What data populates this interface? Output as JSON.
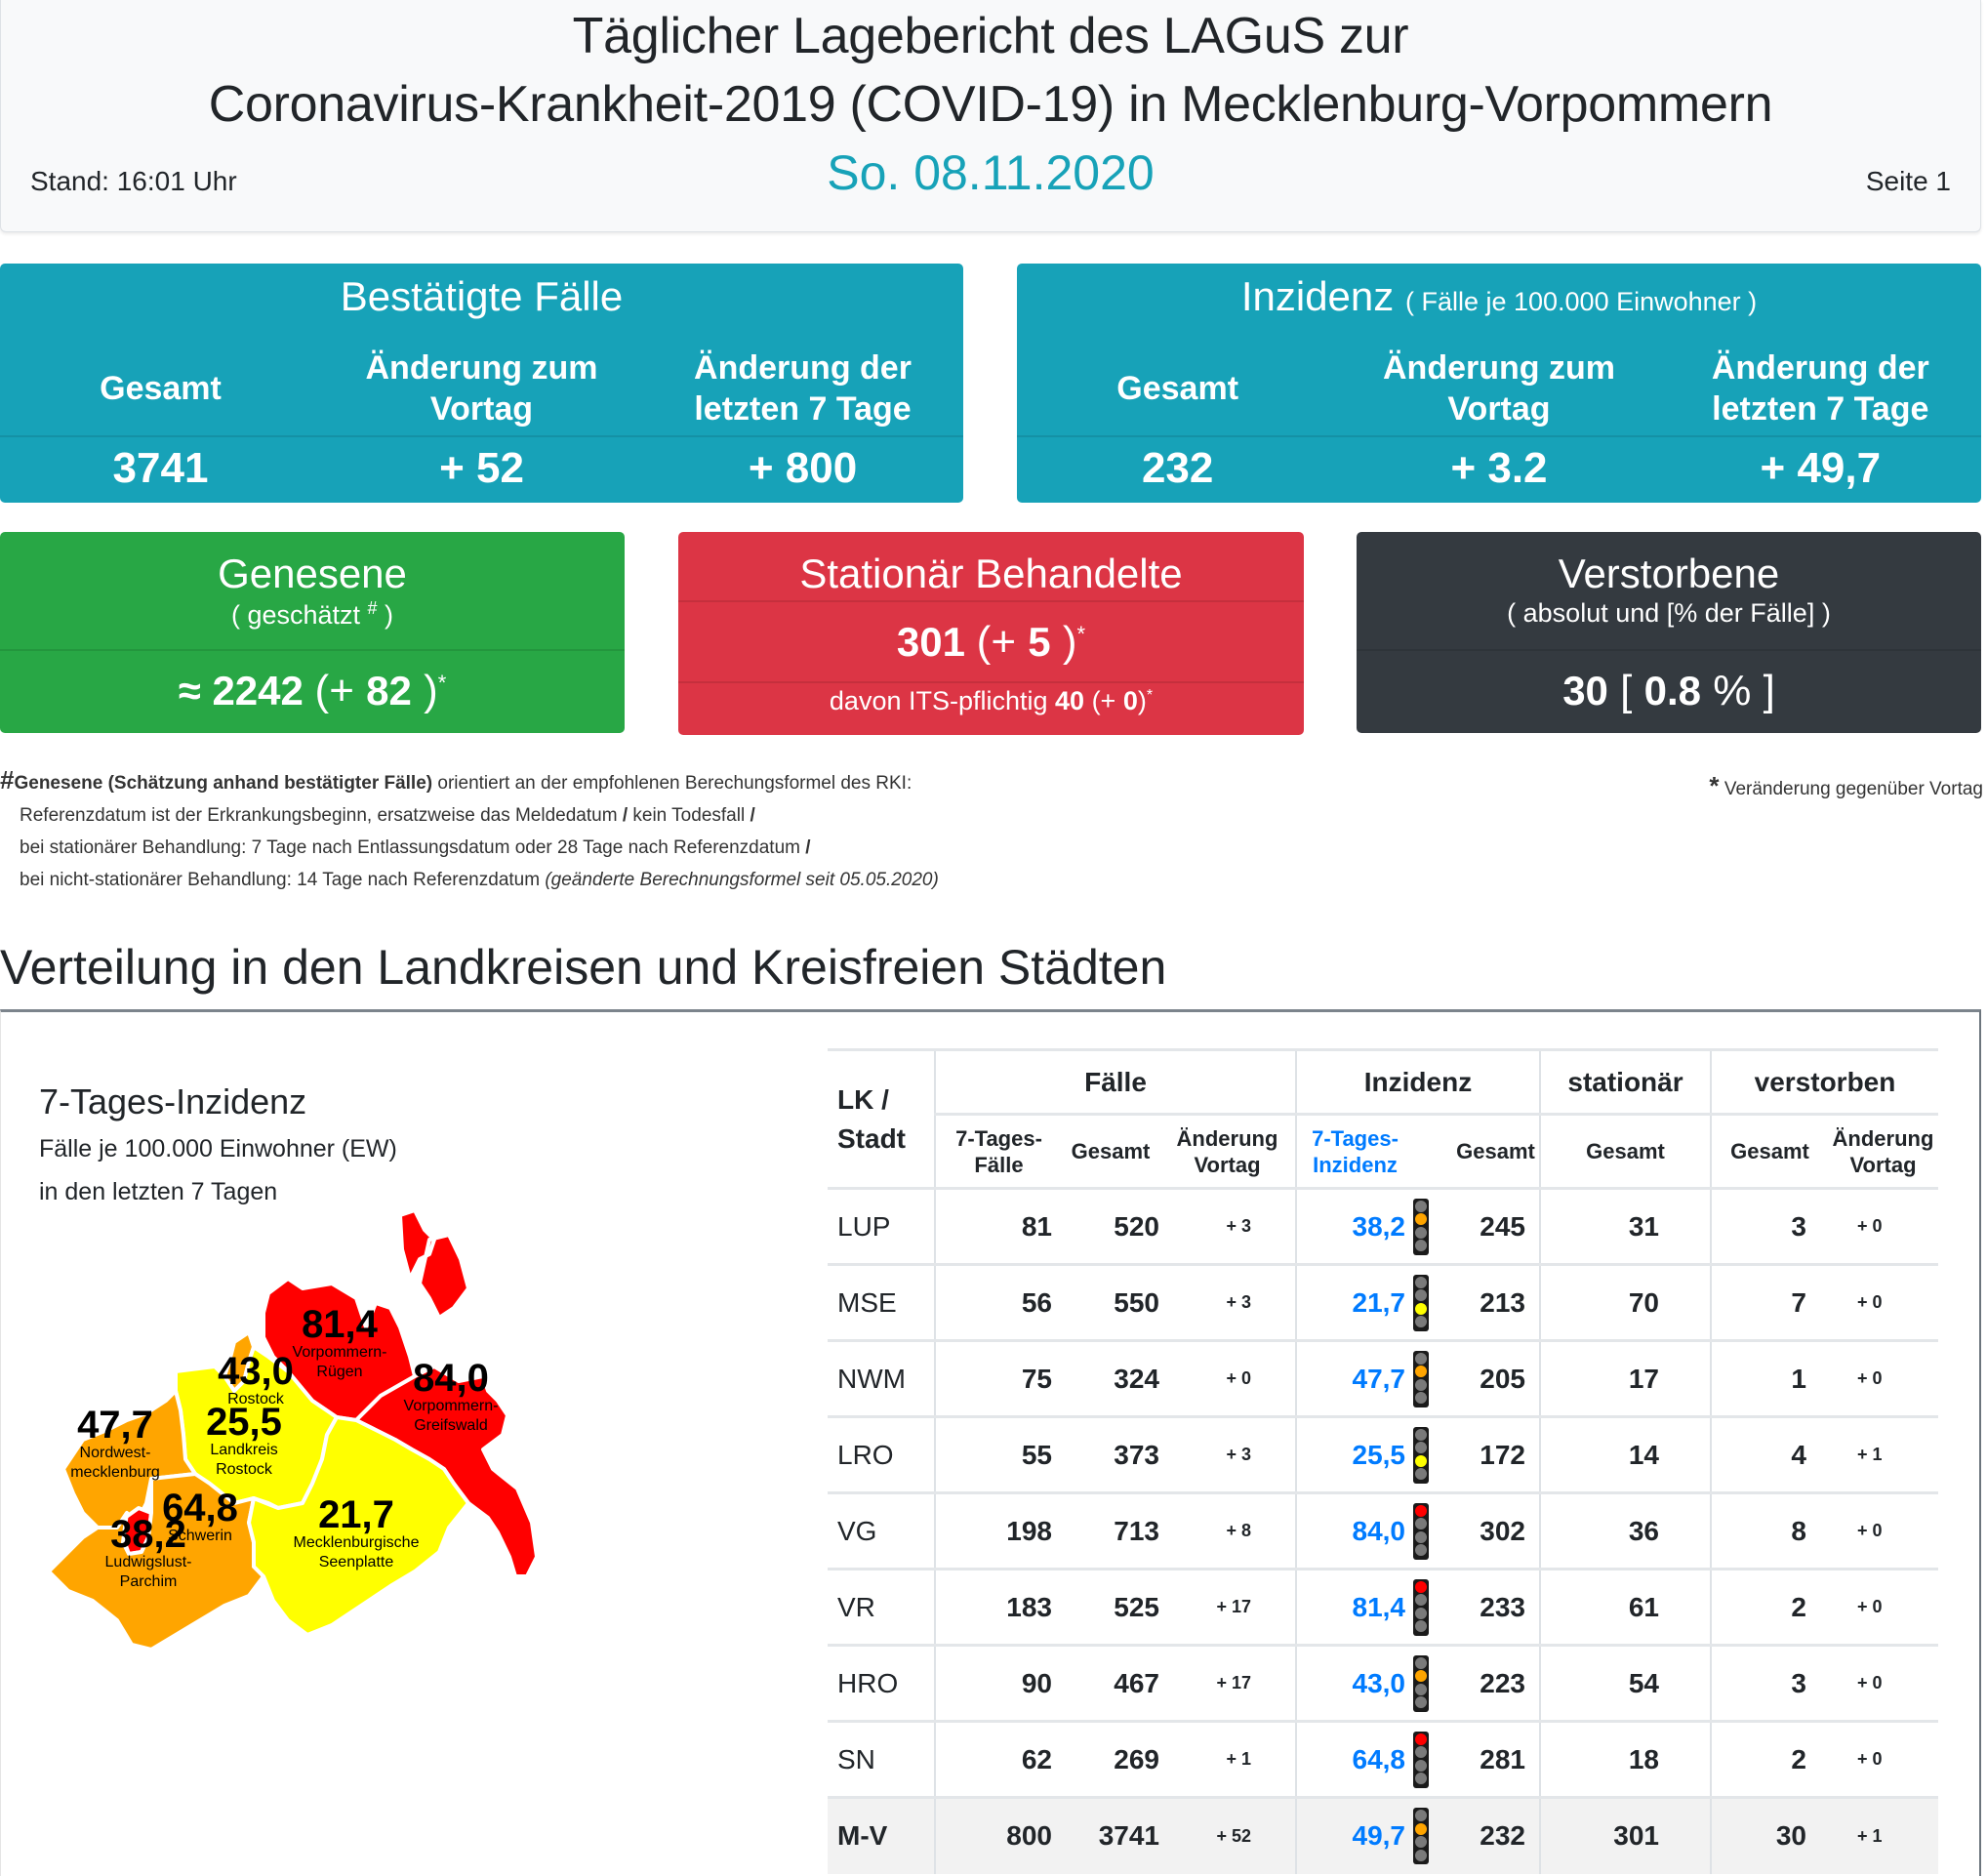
{
  "header": {
    "title_line1": "Täglicher Lagebericht des LAGuS zur",
    "title_line2": "Coronavirus-Krankheit-2019 (COVID-19) in Mecklenburg-Vorpommern",
    "stand": "Stand: 16:01 Uhr",
    "date": "So. 08.11.2020",
    "page": "Seite 1"
  },
  "cards": {
    "faelle": {
      "title": "Bestätigte Fälle",
      "columns": [
        "Gesamt",
        "Änderung zum Vortag",
        "Änderung der letzten 7 Tage"
      ],
      "values": [
        "3741",
        "+ 52",
        "+ 800"
      ]
    },
    "inzidenz": {
      "title": "Inzidenz",
      "subtitle": "( Fälle je 100.000 Einwohner )",
      "columns": [
        "Gesamt",
        "Änderung zum Vortag",
        "Änderung der letzten 7 Tage"
      ],
      "values": [
        "232",
        "+ 3.2",
        "+ 49,7"
      ]
    },
    "genesene": {
      "title": "Genesene",
      "subtitle_pre": "( geschätzt ",
      "subtitle_mark": "#",
      "subtitle_post": " )",
      "approx": "≈",
      "value": "2242",
      "paren_open": "(+ ",
      "change": "82",
      "paren_close": " )",
      "mark": "*"
    },
    "stationaer": {
      "title": "Stationär Behandelte",
      "value": "301",
      "paren_open": "(+ ",
      "change": "5",
      "paren_close": " )",
      "mark": "*",
      "its_label": "davon ITS-pflichtig ",
      "its_value": "40",
      "its_paren_open": " (+ ",
      "its_change": "0",
      "its_paren_close": ")",
      "its_mark": "*"
    },
    "verstorbene": {
      "title": "Verstorbene",
      "subtitle": "( absolut und [% der Fälle] )",
      "value": "30",
      "bracket_open": " [ ",
      "percent": "0.8",
      "bracket_close": " % ]"
    }
  },
  "footnotes": {
    "hash": "#",
    "bold": "Genesene (Schätzung anhand bestätigter Fälle)",
    "line1_rest": " orientiert an der empfohlenen Berechungsformel des RKI:",
    "line2a": "Referenzdatum ist der Erkrankungsbeginn, ersatzweise das Meldedatum ",
    "line2b": " kein Todesfall ",
    "slash": "/",
    "line3": "bei stationärer Behandlung: 7 Tage nach Entlassungsdatum oder 28 Tage nach Referenzdatum ",
    "line4": "bei nicht-stationärer Behandlung: 14 Tage nach Referenzdatum ",
    "line4_italic": "(geänderte Berechnungsformel seit 05.05.2020)",
    "asterisk": "*",
    "asterisk_text": " Veränderung gegenüber Vortag"
  },
  "section": {
    "title": "Verteilung in den Landkreisen und Kreisfreien Städten"
  },
  "map": {
    "title": "7-Tages-Inzidenz",
    "subtitle1": "Fälle je 100.000 Einwohner (EW)",
    "subtitle2": "in den letzten 7 Tagen",
    "colors": {
      "red": "#ff0000",
      "orange": "#ffa500",
      "yellow": "#ffff00"
    },
    "regions": [
      {
        "id": "vr",
        "value": "81,4",
        "name1": "Vorpommern-",
        "name2": "Rügen",
        "color": "#ff0000"
      },
      {
        "id": "vg",
        "value": "84,0",
        "name1": "Vorpommern-",
        "name2": "Greifswald",
        "color": "#ff0000"
      },
      {
        "id": "hro",
        "value": "43,0",
        "name1": "Rostock",
        "name2": "",
        "color": "#ffa500"
      },
      {
        "id": "lro",
        "value": "25,5",
        "name1": "Landkreis",
        "name2": "Rostock",
        "color": "#ffff00"
      },
      {
        "id": "nwm",
        "value": "47,7",
        "name1": "Nordwest-",
        "name2": "mecklenburg",
        "color": "#ffa500"
      },
      {
        "id": "sn",
        "value": "64,8",
        "name1": "Schwerin",
        "name2": "",
        "color": "#ff0000"
      },
      {
        "id": "lup",
        "value": "38,2",
        "name1": "Ludwigslust-",
        "name2": "Parchim",
        "color": "#ffa500"
      },
      {
        "id": "mse",
        "value": "21,7",
        "name1": "Mecklenburgische",
        "name2": "Seenplatte",
        "color": "#ffff00"
      }
    ]
  },
  "table": {
    "header_lk": "LK /",
    "header_stadt": "Stadt",
    "groups": [
      "Fälle",
      "Inzidenz",
      "stationär",
      "verstorben"
    ],
    "sub": {
      "f7_1": "7-Tages-",
      "f7_2": "Fälle",
      "fgesamt": "Gesamt",
      "fchg_1": "Änderung",
      "fchg_2": "Vortag",
      "i7_1": "7-Tages-",
      "i7_2": "Inzidenz",
      "igesamt": "Gesamt",
      "sgesamt": "Gesamt",
      "vgesamt": "Gesamt",
      "vchg_1": "Änderung",
      "vchg_2": "Vortag"
    },
    "rows": [
      {
        "name": "LUP",
        "f7": "81",
        "fges": "520",
        "fchg": "+ 3",
        "inz7": "38,2",
        "light": "orange",
        "iges": "245",
        "stat": "31",
        "vges": "3",
        "vchg": "+ 0"
      },
      {
        "name": "MSE",
        "f7": "56",
        "fges": "550",
        "fchg": "+ 3",
        "inz7": "21,7",
        "light": "yellow",
        "iges": "213",
        "stat": "70",
        "vges": "7",
        "vchg": "+ 0"
      },
      {
        "name": "NWM",
        "f7": "75",
        "fges": "324",
        "fchg": "+ 0",
        "inz7": "47,7",
        "light": "orange",
        "iges": "205",
        "stat": "17",
        "vges": "1",
        "vchg": "+ 0"
      },
      {
        "name": "LRO",
        "f7": "55",
        "fges": "373",
        "fchg": "+ 3",
        "inz7": "25,5",
        "light": "yellow",
        "iges": "172",
        "stat": "14",
        "vges": "4",
        "vchg": "+ 1"
      },
      {
        "name": "VG",
        "f7": "198",
        "fges": "713",
        "fchg": "+ 8",
        "inz7": "84,0",
        "light": "red",
        "iges": "302",
        "stat": "36",
        "vges": "8",
        "vchg": "+ 0"
      },
      {
        "name": "VR",
        "f7": "183",
        "fges": "525",
        "fchg": "+ 17",
        "inz7": "81,4",
        "light": "red",
        "iges": "233",
        "stat": "61",
        "vges": "2",
        "vchg": "+ 0"
      },
      {
        "name": "HRO",
        "f7": "90",
        "fges": "467",
        "fchg": "+ 17",
        "inz7": "43,0",
        "light": "orange",
        "iges": "223",
        "stat": "54",
        "vges": "3",
        "vchg": "+ 0"
      },
      {
        "name": "SN",
        "f7": "62",
        "fges": "269",
        "fchg": "+ 1",
        "inz7": "64,8",
        "light": "red",
        "iges": "281",
        "stat": "18",
        "vges": "2",
        "vchg": "+ 0"
      }
    ],
    "total": {
      "name": "M-V",
      "f7": "800",
      "fges": "3741",
      "fchg": "+ 52",
      "inz7": "49,7",
      "light": "orange",
      "iges": "232",
      "stat": "301",
      "vges": "30",
      "vchg": "+ 1"
    }
  }
}
